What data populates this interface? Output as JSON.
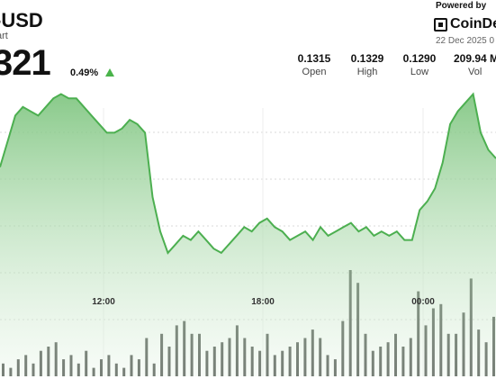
{
  "header": {
    "pair": "-USD",
    "subtitle": "art",
    "price": "321",
    "change": "0.49%",
    "powered_by": "Powered by",
    "brand": "CoinDe",
    "date": "22 Dec 2025 0"
  },
  "stats": [
    {
      "value": "0.1315",
      "label": "Open"
    },
    {
      "value": "0.1329",
      "label": "High"
    },
    {
      "value": "0.1290",
      "label": "Low"
    },
    {
      "value": "209.94 M",
      "label": "Vol"
    }
  ],
  "colors": {
    "line": "#4caf50",
    "up": "#49b34a",
    "volume": "#3a3f3a"
  },
  "icons": {
    "logo": "coindesk-logo",
    "change": "up-triangle-icon"
  },
  "chart_data": {
    "type": "area",
    "x_ticks": [
      "12:00",
      "18:00",
      "00:00"
    ],
    "price": [
      0.1312,
      0.1318,
      0.1324,
      0.1326,
      0.1325,
      0.1324,
      0.1326,
      0.1328,
      0.1329,
      0.1328,
      0.1328,
      0.1326,
      0.1324,
      0.1322,
      0.132,
      0.132,
      0.1321,
      0.1323,
      0.1322,
      0.132,
      0.1305,
      0.1297,
      0.1292,
      0.1294,
      0.1296,
      0.1295,
      0.1297,
      0.1295,
      0.1293,
      0.1292,
      0.1294,
      0.1296,
      0.1298,
      0.1297,
      0.1299,
      0.13,
      0.1298,
      0.1297,
      0.1295,
      0.1296,
      0.1297,
      0.1295,
      0.1298,
      0.1296,
      0.1297,
      0.1298,
      0.1299,
      0.1297,
      0.1298,
      0.1296,
      0.1297,
      0.1296,
      0.1297,
      0.1295,
      0.1295,
      0.1302,
      0.1304,
      0.1307,
      0.1313,
      0.1322,
      0.1325,
      0.1327,
      0.1329,
      0.132,
      0.1316,
      0.1314
    ],
    "volume": [
      3,
      2,
      4,
      5,
      3,
      6,
      7,
      8,
      4,
      5,
      3,
      6,
      2,
      4,
      5,
      3,
      2,
      5,
      4,
      9,
      3,
      10,
      7,
      12,
      13,
      10,
      10,
      6,
      7,
      8,
      9,
      12,
      9,
      7,
      6,
      10,
      5,
      6,
      7,
      8,
      9,
      11,
      9,
      5,
      4,
      13,
      25,
      22,
      10,
      6,
      7,
      8,
      10,
      7,
      9,
      20,
      12,
      16,
      17,
      10,
      10,
      15,
      23,
      11,
      8,
      14
    ],
    "volume_max": 25
  }
}
